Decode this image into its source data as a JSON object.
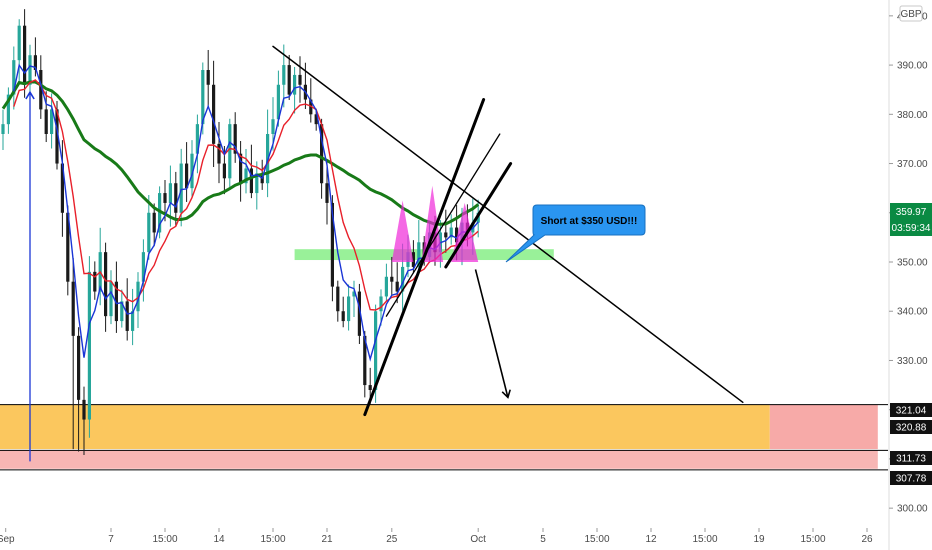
{
  "currency_badge": "GBP",
  "callout": {
    "text": "Short at $350 USD!!!"
  },
  "current_price": {
    "value": "359.97",
    "countdown": "03:59:34"
  },
  "colors": {
    "bull": "#26a69a",
    "bear": "#1a1a1a",
    "ema_fast": "#1a35d6",
    "ema_slow": "#e8202a",
    "sma_long": "#187a18",
    "support_zone": "#fbc75e",
    "support_zone_ext": "#f7aaa8",
    "lower_band": "#f7b6b4",
    "resistance_zone": "#8ef08e",
    "pattern": "#f028d8",
    "callout_fill": "#2a95f0",
    "price_tag": "#0a8a43"
  },
  "chart_data": {
    "type": "candlestick",
    "title": "",
    "xlabel": "",
    "ylabel": "",
    "ylim": [
      298,
      402
    ],
    "y_ticks": [
      300,
      310,
      320,
      330,
      340,
      350,
      360,
      370,
      380,
      390,
      400
    ],
    "y_tick_labels": [
      "300.00",
      "310.00",
      "320.00",
      "330.00",
      "340.00",
      "350.00",
      "360.00",
      "370.00",
      "380.00",
      "390.00",
      "400.00"
    ],
    "x_tick_labels": [
      {
        "label": "Sep",
        "pos": 0.5
      },
      {
        "label": "7",
        "pos": 20
      },
      {
        "label": "15:00",
        "pos": 30
      },
      {
        "label": "14",
        "pos": 40
      },
      {
        "label": "15:00",
        "pos": 50
      },
      {
        "label": "21",
        "pos": 60
      },
      {
        "label": "25",
        "pos": 72
      },
      {
        "label": "Oct",
        "pos": 88
      },
      {
        "label": "5",
        "pos": 100
      },
      {
        "label": "15:00",
        "pos": 110
      },
      {
        "label": "12",
        "pos": 120
      },
      {
        "label": "15:00",
        "pos": 130
      },
      {
        "label": "19",
        "pos": 140
      },
      {
        "label": "15:00",
        "pos": 150
      },
      {
        "label": "26",
        "pos": 160
      }
    ],
    "price_labels": [
      {
        "value": 359.97,
        "text": "359.97",
        "style": "current"
      },
      {
        "value": 321.04,
        "text": "321.04",
        "style": "dark"
      },
      {
        "value": 320.88,
        "text": "320.88",
        "style": "dark"
      },
      {
        "value": 311.73,
        "text": "311.73",
        "style": "dark"
      },
      {
        "value": 307.78,
        "text": "307.78",
        "style": "dark"
      }
    ],
    "closes": [
      378,
      384,
      391,
      398,
      386,
      392,
      389,
      381,
      376,
      381,
      370,
      360,
      346,
      335,
      322,
      318,
      348,
      344,
      352,
      339,
      346,
      338,
      342,
      336,
      340,
      346,
      352,
      360,
      356,
      364,
      362,
      366,
      360,
      370,
      365,
      372,
      378,
      389,
      386,
      374,
      370,
      367,
      378,
      372,
      366,
      369,
      364,
      368,
      366,
      376,
      379,
      386,
      390,
      384,
      388,
      386,
      383,
      380,
      378,
      366,
      362,
      345,
      340,
      338,
      343,
      344,
      335,
      325,
      324,
      340,
      343,
      347,
      346,
      344,
      349,
      352,
      349,
      354,
      351,
      356,
      352,
      356,
      355,
      357,
      354,
      358,
      356,
      358,
      360
    ],
    "annotations": [
      {
        "kind": "zone",
        "name": "support-zone",
        "y1": 312,
        "y2": 321,
        "x1": -1,
        "x2": 142
      },
      {
        "kind": "zone",
        "name": "support-zone-extension",
        "y1": 312,
        "y2": 321,
        "x1": 142,
        "x2": 162
      },
      {
        "kind": "zone",
        "name": "lower-band",
        "y1": 308,
        "y2": 311.7,
        "x1": -1,
        "x2": 162
      },
      {
        "kind": "zone",
        "name": "resistance-zone",
        "y1": 350.4,
        "y2": 352.6,
        "x1": 54,
        "x2": 102
      },
      {
        "kind": "hline",
        "name": "level-321",
        "y": 321.04
      },
      {
        "kind": "hline",
        "name": "level-311",
        "y": 311.73
      },
      {
        "kind": "hline",
        "name": "level-307",
        "y": 307.78
      },
      {
        "kind": "trendline",
        "name": "descending-trendline",
        "x1": 50,
        "y1": 393.8,
        "x2": 137,
        "y2": 321.5
      },
      {
        "kind": "trendline",
        "name": "channel-line-left",
        "x1": 67,
        "y1": 319,
        "x2": 89,
        "y2": 383
      },
      {
        "kind": "trendline",
        "name": "channel-line-mid",
        "x1": 71,
        "y1": 339,
        "x2": 92,
        "y2": 376
      },
      {
        "kind": "trendline",
        "name": "channel-line-right",
        "x1": 82,
        "y1": 349,
        "x2": 94,
        "y2": 370
      },
      {
        "kind": "arrow",
        "name": "target-arrow",
        "x1": 87.5,
        "y1": 348.5,
        "x2": 93.5,
        "y2": 322.5
      },
      {
        "kind": "arrow",
        "name": "rally-arrow",
        "x1": 5,
        "y1": 309.5,
        "x2": 5,
        "y2": 384.5
      }
    ],
    "pattern_peaks": [
      {
        "name": "head-shoulders-left",
        "x1": 72,
        "xp": 74,
        "x2": 76,
        "ypeak": 362.5,
        "ybase": 350
      },
      {
        "name": "head-shoulders-head",
        "x1": 77.5,
        "xp": 79.5,
        "x2": 81.5,
        "ypeak": 365.5,
        "ybase": 350
      },
      {
        "name": "head-shoulders-right",
        "x1": 83,
        "xp": 85.5,
        "x2": 88,
        "ypeak": 362,
        "ybase": 350
      }
    ]
  }
}
